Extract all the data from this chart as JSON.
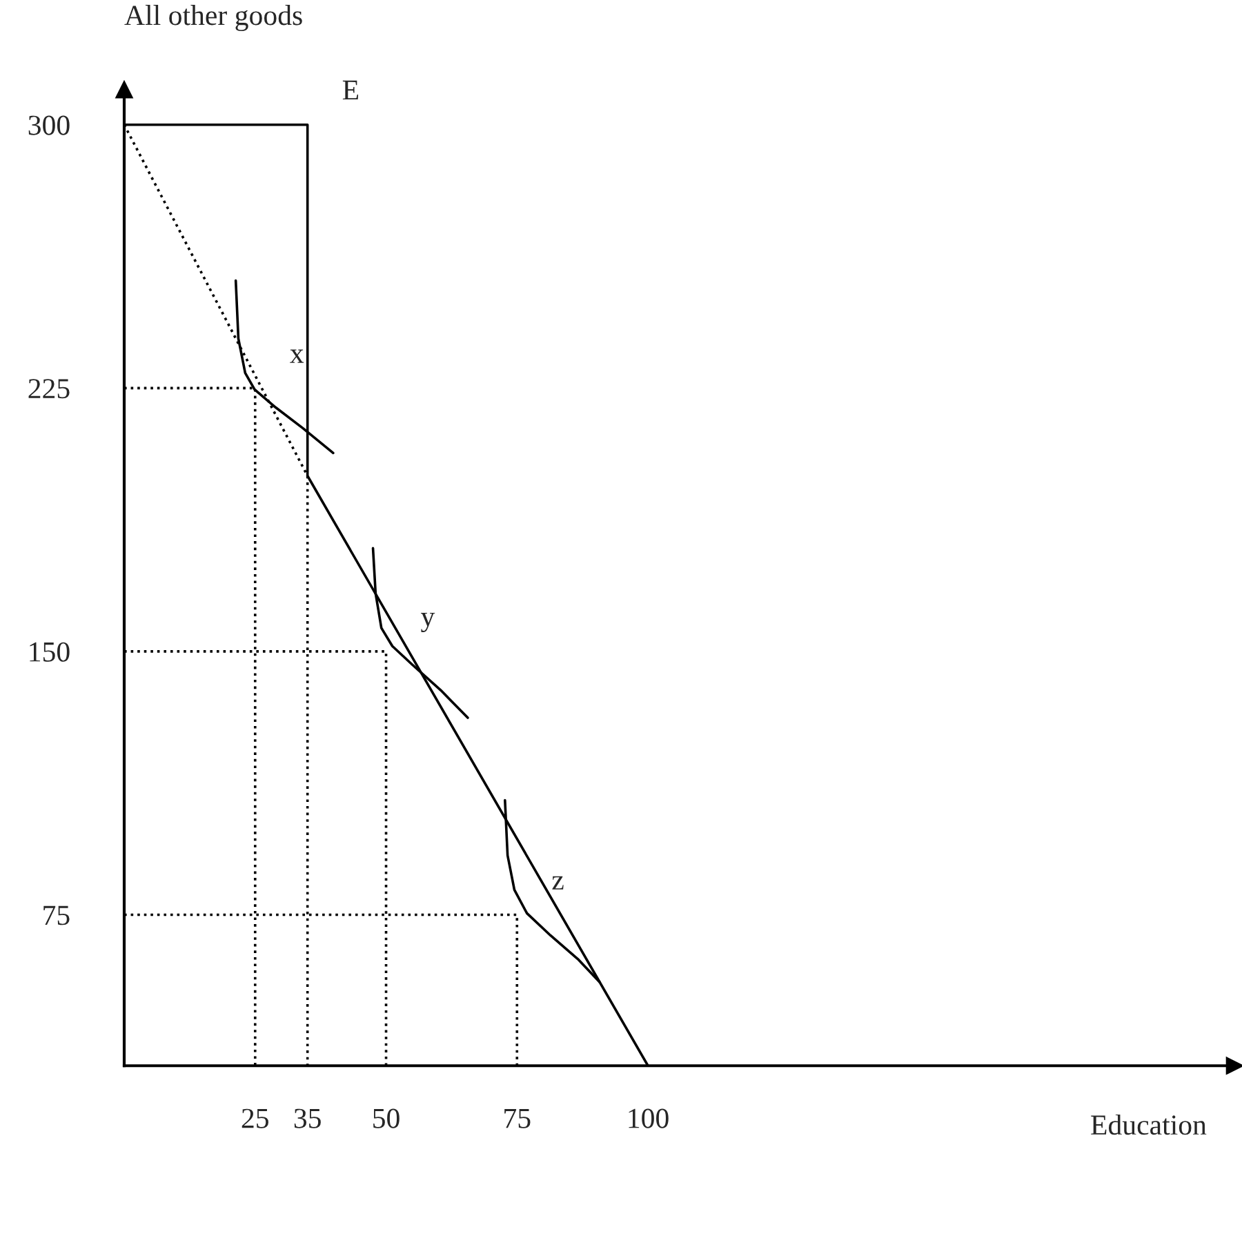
{
  "chart_data": {
    "type": "line",
    "xlabel": "Education",
    "ylabel": "All other goods",
    "xlim": [
      0,
      212
    ],
    "ylim": [
      32,
      310
    ],
    "xticks": [
      25,
      35,
      50,
      75,
      100
    ],
    "yticks": [
      75,
      150,
      225,
      300
    ],
    "series": [
      {
        "color": "#000000",
        "line_style": "solid",
        "x": [
          0,
          35,
          35,
          100
        ],
        "values": [
          300,
          300,
          200,
          32
        ]
      },
      {
        "color": "#000000",
        "line_style": "dotted",
        "x": [
          0,
          35
        ],
        "values": [
          300,
          200
        ]
      },
      {
        "color": "#000000",
        "line_style": "solid",
        "x": [
          21.3,
          21.8,
          23.1,
          24.9,
          28.9,
          34.1,
          39.9
        ],
        "values": [
          255.6,
          239.1,
          229.3,
          224.6,
          219.5,
          213.6,
          206.5
        ]
      },
      {
        "color": "#000000",
        "line_style": "solid",
        "x": [
          47.5,
          48.0,
          49.1,
          51.2,
          55.1,
          60.4,
          65.6
        ],
        "values": [
          179.4,
          166.5,
          156.7,
          151.5,
          146.1,
          139.0,
          131.1
        ]
      },
      {
        "color": "#000000",
        "line_style": "solid",
        "x": [
          72.7,
          73.2,
          74.5,
          76.9,
          81.4,
          86.6,
          90.8
        ],
        "values": [
          107.6,
          91.9,
          82.1,
          75.4,
          69.1,
          62.4,
          55.8
        ]
      },
      {
        "color": "#000000",
        "line_style": "dotted",
        "x": [
          0,
          25,
          25
        ],
        "values": [
          225,
          225,
          32
        ]
      },
      {
        "color": "#000000",
        "line_style": "dotted",
        "x": [
          35,
          35
        ],
        "values": [
          200,
          32
        ]
      },
      {
        "color": "#000000",
        "line_style": "dotted",
        "x": [
          0,
          50,
          50
        ],
        "values": [
          150,
          150,
          32
        ]
      },
      {
        "color": "#000000",
        "line_style": "dotted",
        "x": [
          0,
          75,
          75
        ],
        "values": [
          75,
          75,
          32
        ]
      }
    ],
    "annotations": [
      {
        "text": "E",
        "x": 35,
        "y": 300
      },
      {
        "text": "x",
        "x": 25,
        "y": 225
      },
      {
        "text": "y",
        "x": 50,
        "y": 150
      },
      {
        "text": "z",
        "x": 75,
        "y": 75
      }
    ]
  }
}
